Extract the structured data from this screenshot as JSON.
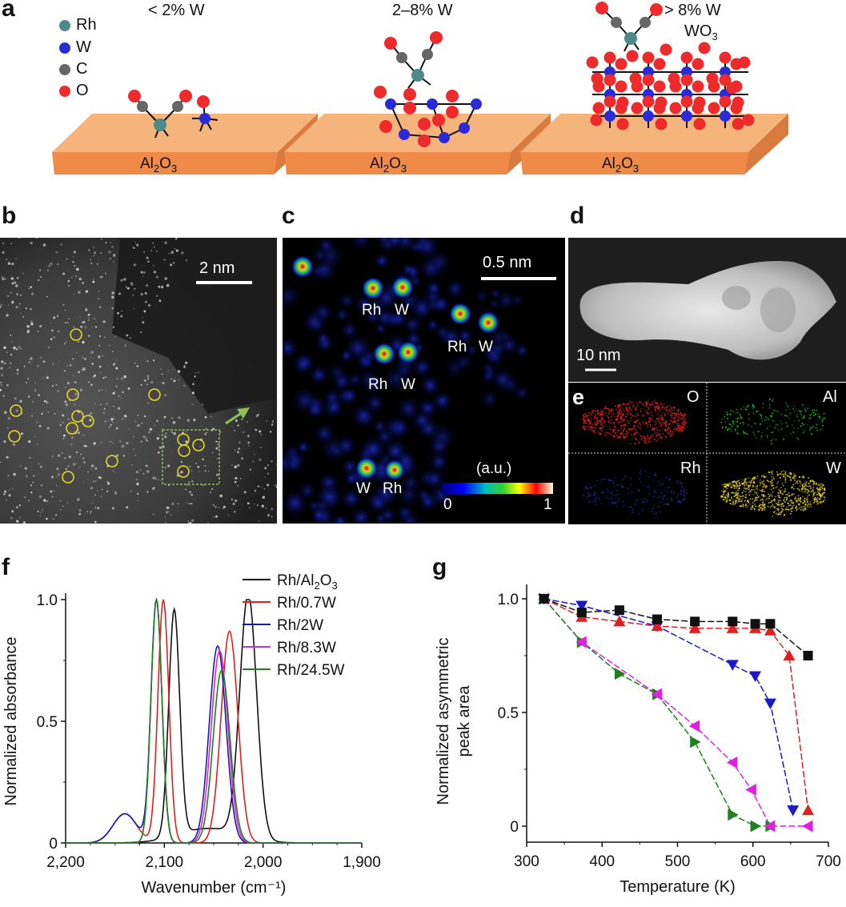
{
  "panel_a": {
    "label": "a",
    "legend": [
      {
        "name": "Rh",
        "color": "#4d8a8a"
      },
      {
        "name": "W",
        "color": "#2a2ad8"
      },
      {
        "name": "C",
        "color": "#666666"
      },
      {
        "name": "O",
        "color": "#ee2a2a"
      }
    ],
    "stages": [
      {
        "title": "< 2% W",
        "support": "Al2O3"
      },
      {
        "title": "2–8% W",
        "support": "Al2O3"
      },
      {
        "title": "> 8% W",
        "subtitle": "WO3",
        "support": "Al2O3"
      }
    ],
    "support_base": "Al",
    "support_sub1": "2",
    "support_mid": "O",
    "support_sub2": "3",
    "wo3_base": "WO",
    "wo3_sub": "3"
  },
  "panel_b": {
    "label": "b",
    "scale_bar": "2 nm"
  },
  "panel_c": {
    "label": "c",
    "scale_bar": "0.5 nm",
    "atom_labels": [
      "Rh",
      "W",
      "Rh",
      "W",
      "Rh",
      "W",
      "W",
      "Rh"
    ],
    "colorbar_title": "(a.u.)",
    "colorbar_min": "0",
    "colorbar_max": "1"
  },
  "panel_d": {
    "label": "d",
    "scale_bar": "10 nm"
  },
  "panel_e": {
    "label": "e",
    "maps": [
      "O",
      "Al",
      "Rh",
      "W"
    ]
  },
  "chart_data": [
    {
      "panel": "f",
      "type": "line",
      "xlabel": "Wavenumber (cm⁻¹)",
      "ylabel": "Normalized absorbance",
      "xlim": [
        2200,
        1900
      ],
      "ylim": [
        0,
        1.0
      ],
      "xticks": [
        "2,200",
        "2,100",
        "2,000",
        "1,900"
      ],
      "yticks": [
        "0",
        "0.5",
        "1.0"
      ],
      "series": [
        {
          "name": "Rh/Al2O3",
          "color": "#111111",
          "peaks": [
            [
              2090,
              0.93
            ],
            [
              2015,
              1.0
            ]
          ]
        },
        {
          "name": "Rh/0.7W",
          "color": "#e02020",
          "peaks": [
            [
              2101,
              1.0
            ],
            [
              2034,
              0.87
            ]
          ]
        },
        {
          "name": "Rh/2W",
          "color": "#1a1aa0",
          "peaks": [
            [
              2108,
              1.0
            ],
            [
              2046,
              0.81
            ]
          ]
        },
        {
          "name": "Rh/8.3W",
          "color": "#e020e0",
          "peaks": [
            [
              2108,
              1.0
            ],
            [
              2044,
              0.79
            ]
          ]
        },
        {
          "name": "Rh/24.5W",
          "color": "#208020",
          "peaks": [
            [
              2108,
              1.0
            ],
            [
              2042,
              0.71
            ]
          ]
        }
      ],
      "legend_display": [
        {
          "base": "Rh/Al",
          "sub1": "2",
          "mid": "O",
          "sub2": "3"
        },
        {
          "base": "Rh/0.7W"
        },
        {
          "base": "Rh/2W"
        },
        {
          "base": "Rh/8.3W"
        },
        {
          "base": "Rh/24.5W"
        }
      ]
    },
    {
      "panel": "g",
      "type": "line",
      "xlabel": "Temperature (K)",
      "ylabel_line1": "Normalized asymmetric",
      "ylabel_line2": "peak area",
      "xlim": [
        300,
        700
      ],
      "ylim": [
        0,
        1.0
      ],
      "xticks": [
        "300",
        "400",
        "500",
        "600",
        "700"
      ],
      "yticks": [
        "0",
        "0.5",
        "1.0"
      ],
      "series": [
        {
          "name": "Rh/Al2O3",
          "color": "#111111",
          "marker": "square",
          "x": [
            323,
            373,
            423,
            473,
            523,
            573,
            603,
            623,
            673
          ],
          "y": [
            1.0,
            0.94,
            0.95,
            0.91,
            0.9,
            0.9,
            0.89,
            0.89,
            0.75
          ]
        },
        {
          "name": "Rh/0.7W",
          "color": "#e02020",
          "marker": "triangle-up",
          "x": [
            323,
            373,
            423,
            473,
            523,
            573,
            603,
            623,
            648,
            673
          ],
          "y": [
            1.0,
            0.92,
            0.9,
            0.88,
            0.87,
            0.87,
            0.87,
            0.86,
            0.75,
            0.07
          ]
        },
        {
          "name": "Rh/2W",
          "color": "#1a1acc",
          "marker": "triangle-down",
          "x": [
            323,
            373,
            473,
            573,
            603,
            623,
            653
          ],
          "y": [
            1.0,
            0.97,
            0.88,
            0.71,
            0.66,
            0.54,
            0.07
          ]
        },
        {
          "name": "Rh/8.3W",
          "color": "#e020e0",
          "marker": "triangle-left",
          "x": [
            323,
            373,
            473,
            523,
            573,
            598,
            623,
            673
          ],
          "y": [
            1.0,
            0.81,
            0.58,
            0.44,
            0.28,
            0.16,
            0.0,
            0.0
          ]
        },
        {
          "name": "Rh/24.5W",
          "color": "#208020",
          "marker": "triangle-right",
          "x": [
            323,
            373,
            423,
            473,
            523,
            573,
            603,
            623
          ],
          "y": [
            1.0,
            0.81,
            0.67,
            0.58,
            0.37,
            0.05,
            0.0,
            0.0
          ]
        }
      ]
    }
  ]
}
